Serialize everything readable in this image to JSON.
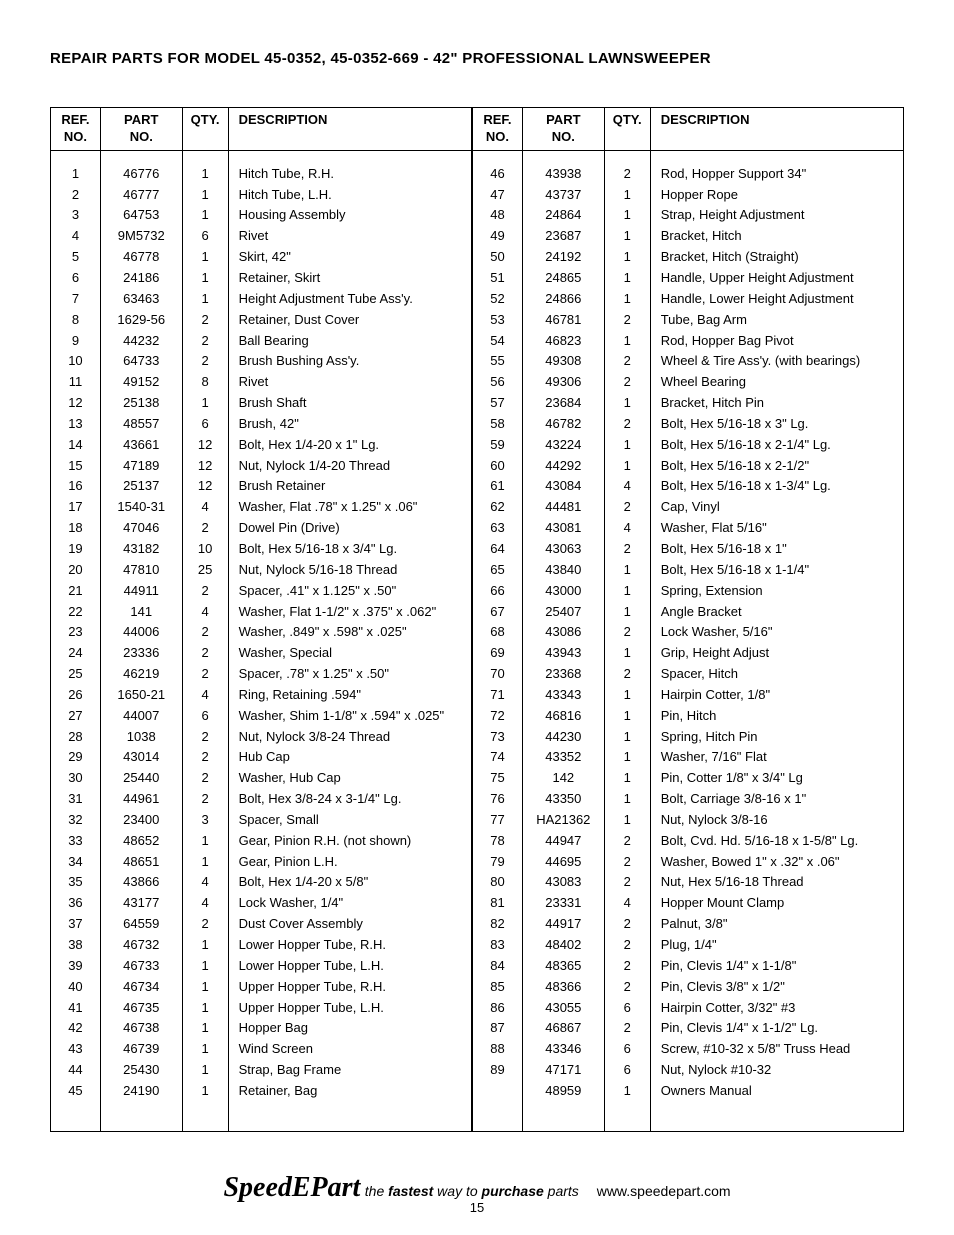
{
  "title": "REPAIR PARTS FOR MODEL 45-0352, 45-0352-669 - 42\"  PROFESSIONAL LAWNSWEEPER",
  "page_number": "15",
  "footer": {
    "brand": "SpeedEPart",
    "tagline_parts": [
      "the ",
      "fastest",
      " way to ",
      "purchase",
      " parts"
    ],
    "url": "www.speedepart.com"
  },
  "headers": {
    "ref": "REF.\nNO.",
    "part": "PART\nNO.",
    "qty": "QTY.",
    "desc": "DESCRIPTION"
  },
  "left": [
    {
      "ref": "1",
      "part": "46776",
      "qty": "1",
      "desc": "Hitch Tube, R.H."
    },
    {
      "ref": "2",
      "part": "46777",
      "qty": "1",
      "desc": "Hitch Tube, L.H."
    },
    {
      "ref": "3",
      "part": "64753",
      "qty": "1",
      "desc": "Housing Assembly"
    },
    {
      "ref": "4",
      "part": "9M5732",
      "qty": "6",
      "desc": "Rivet"
    },
    {
      "ref": "5",
      "part": "46778",
      "qty": "1",
      "desc": "Skirt, 42\""
    },
    {
      "ref": "6",
      "part": "24186",
      "qty": "1",
      "desc": "Retainer, Skirt"
    },
    {
      "ref": "7",
      "part": "63463",
      "qty": "1",
      "desc": "Height Adjustment Tube Ass'y."
    },
    {
      "ref": "8",
      "part": "1629-56",
      "qty": "2",
      "desc": "Retainer, Dust Cover"
    },
    {
      "ref": "9",
      "part": "44232",
      "qty": "2",
      "desc": "Ball Bearing"
    },
    {
      "ref": "10",
      "part": "64733",
      "qty": "2",
      "desc": "Brush Bushing Ass'y."
    },
    {
      "ref": "11",
      "part": "49152",
      "qty": "8",
      "desc": "Rivet"
    },
    {
      "ref": "12",
      "part": "25138",
      "qty": "1",
      "desc": "Brush Shaft"
    },
    {
      "ref": "13",
      "part": "48557",
      "qty": "6",
      "desc": "Brush, 42\""
    },
    {
      "ref": "14",
      "part": "43661",
      "qty": "12",
      "desc": "Bolt, Hex 1/4-20 x 1\" Lg."
    },
    {
      "ref": "15",
      "part": "47189",
      "qty": "12",
      "desc": "Nut, Nylock 1/4-20 Thread"
    },
    {
      "ref": "16",
      "part": "25137",
      "qty": "12",
      "desc": "Brush Retainer"
    },
    {
      "ref": "17",
      "part": "1540-31",
      "qty": "4",
      "desc": "Washer, Flat .78\" x 1.25\" x .06\""
    },
    {
      "ref": "18",
      "part": "47046",
      "qty": "2",
      "desc": "Dowel Pin (Drive)"
    },
    {
      "ref": "19",
      "part": "43182",
      "qty": "10",
      "desc": "Bolt, Hex 5/16-18 x 3/4\" Lg."
    },
    {
      "ref": "20",
      "part": "47810",
      "qty": "25",
      "desc": "Nut, Nylock 5/16-18 Thread"
    },
    {
      "ref": "21",
      "part": "44911",
      "qty": "2",
      "desc": "Spacer, .41\" x 1.125\" x .50\""
    },
    {
      "ref": "22",
      "part": "141",
      "qty": "4",
      "desc": "Washer, Flat 1-1/2\" x .375\" x .062\""
    },
    {
      "ref": "23",
      "part": "44006",
      "qty": "2",
      "desc": "Washer, .849\" x .598\" x .025\""
    },
    {
      "ref": "24",
      "part": "23336",
      "qty": "2",
      "desc": "Washer, Special"
    },
    {
      "ref": "25",
      "part": "46219",
      "qty": "2",
      "desc": "Spacer, .78\" x 1.25\" x .50\""
    },
    {
      "ref": "26",
      "part": "1650-21",
      "qty": "4",
      "desc": "Ring, Retaining .594\""
    },
    {
      "ref": "27",
      "part": "44007",
      "qty": "6",
      "desc": "Washer, Shim 1-1/8\" x .594\" x .025\""
    },
    {
      "ref": "28",
      "part": "1038",
      "qty": "2",
      "desc": "Nut, Nylock 3/8-24 Thread"
    },
    {
      "ref": "29",
      "part": "43014",
      "qty": "2",
      "desc": "Hub Cap"
    },
    {
      "ref": "30",
      "part": "25440",
      "qty": "2",
      "desc": "Washer, Hub Cap"
    },
    {
      "ref": "31",
      "part": "44961",
      "qty": "2",
      "desc": "Bolt, Hex 3/8-24 x 3-1/4\" Lg."
    },
    {
      "ref": "32",
      "part": "23400",
      "qty": "3",
      "desc": "Spacer, Small"
    },
    {
      "ref": "33",
      "part": "48652",
      "qty": "1",
      "desc": "Gear, Pinion R.H. (not shown)"
    },
    {
      "ref": "34",
      "part": "48651",
      "qty": "1",
      "desc": "Gear, Pinion L.H."
    },
    {
      "ref": "35",
      "part": "43866",
      "qty": "4",
      "desc": "Bolt, Hex 1/4-20 x 5/8\""
    },
    {
      "ref": "36",
      "part": "43177",
      "qty": "4",
      "desc": "Lock Washer, 1/4\""
    },
    {
      "ref": "37",
      "part": "64559",
      "qty": "2",
      "desc": "Dust Cover Assembly"
    },
    {
      "ref": "38",
      "part": "46732",
      "qty": "1",
      "desc": "Lower Hopper Tube, R.H."
    },
    {
      "ref": "39",
      "part": "46733",
      "qty": "1",
      "desc": "Lower Hopper Tube, L.H."
    },
    {
      "ref": "40",
      "part": "46734",
      "qty": "1",
      "desc": "Upper Hopper Tube, R.H."
    },
    {
      "ref": "41",
      "part": "46735",
      "qty": "1",
      "desc": "Upper Hopper Tube, L.H."
    },
    {
      "ref": "42",
      "part": "46738",
      "qty": "1",
      "desc": "Hopper Bag"
    },
    {
      "ref": "43",
      "part": "46739",
      "qty": "1",
      "desc": "Wind Screen"
    },
    {
      "ref": "44",
      "part": "25430",
      "qty": "1",
      "desc": "Strap, Bag Frame"
    },
    {
      "ref": "45",
      "part": "24190",
      "qty": "1",
      "desc": "Retainer, Bag"
    }
  ],
  "right": [
    {
      "ref": "46",
      "part": "43938",
      "qty": "2",
      "desc": "Rod, Hopper Support  34\""
    },
    {
      "ref": "47",
      "part": "43737",
      "qty": "1",
      "desc": "Hopper Rope"
    },
    {
      "ref": "48",
      "part": "24864",
      "qty": "1",
      "desc": "Strap, Height Adjustment"
    },
    {
      "ref": "49",
      "part": "23687",
      "qty": "1",
      "desc": "Bracket, Hitch"
    },
    {
      "ref": "50",
      "part": "24192",
      "qty": "1",
      "desc": "Bracket, Hitch (Straight)"
    },
    {
      "ref": "51",
      "part": "24865",
      "qty": "1",
      "desc": "Handle, Upper Height Adjustment"
    },
    {
      "ref": "52",
      "part": "24866",
      "qty": "1",
      "desc": "Handle, Lower Height Adjustment"
    },
    {
      "ref": "53",
      "part": "46781",
      "qty": "2",
      "desc": "Tube, Bag Arm"
    },
    {
      "ref": "54",
      "part": "46823",
      "qty": "1",
      "desc": "Rod, Hopper Bag Pivot"
    },
    {
      "ref": "55",
      "part": "49308",
      "qty": "2",
      "desc": "Wheel & Tire Ass'y. (with bearings)"
    },
    {
      "ref": "56",
      "part": "49306",
      "qty": "2",
      "desc": "Wheel Bearing"
    },
    {
      "ref": "57",
      "part": "23684",
      "qty": "1",
      "desc": "Bracket, Hitch Pin"
    },
    {
      "ref": "58",
      "part": "46782",
      "qty": "2",
      "desc": "Bolt, Hex 5/16-18 x 3\" Lg."
    },
    {
      "ref": "59",
      "part": "43224",
      "qty": "1",
      "desc": "Bolt, Hex 5/16-18 x 2-1/4\" Lg."
    },
    {
      "ref": "60",
      "part": "44292",
      "qty": "1",
      "desc": "Bolt, Hex 5/16-18 x 2-1/2\""
    },
    {
      "ref": "61",
      "part": "43084",
      "qty": "4",
      "desc": "Bolt, Hex 5/16-18 x 1-3/4\" Lg."
    },
    {
      "ref": "62",
      "part": "44481",
      "qty": "2",
      "desc": "Cap, Vinyl"
    },
    {
      "ref": "63",
      "part": "43081",
      "qty": "4",
      "desc": "Washer, Flat 5/16\""
    },
    {
      "ref": "64",
      "part": "43063",
      "qty": "2",
      "desc": "Bolt, Hex 5/16-18 x 1\""
    },
    {
      "ref": "65",
      "part": "43840",
      "qty": "1",
      "desc": "Bolt, Hex 5/16-18 x 1-1/4\""
    },
    {
      "ref": "66",
      "part": "43000",
      "qty": "1",
      "desc": "Spring, Extension"
    },
    {
      "ref": "67",
      "part": "25407",
      "qty": "1",
      "desc": "Angle Bracket"
    },
    {
      "ref": "68",
      "part": "43086",
      "qty": "2",
      "desc": "Lock Washer, 5/16\""
    },
    {
      "ref": "69",
      "part": "43943",
      "qty": "1",
      "desc": "Grip, Height Adjust"
    },
    {
      "ref": "70",
      "part": "23368",
      "qty": "2",
      "desc": "Spacer, Hitch"
    },
    {
      "ref": "71",
      "part": "43343",
      "qty": "1",
      "desc": "Hairpin Cotter, 1/8\""
    },
    {
      "ref": "72",
      "part": "46816",
      "qty": "1",
      "desc": "Pin, Hitch"
    },
    {
      "ref": "73",
      "part": "44230",
      "qty": "1",
      "desc": "Spring, Hitch Pin"
    },
    {
      "ref": "74",
      "part": "43352",
      "qty": "1",
      "desc": "Washer, 7/16\" Flat"
    },
    {
      "ref": "75",
      "part": "142",
      "qty": "1",
      "desc": "Pin, Cotter 1/8\" x 3/4\" Lg"
    },
    {
      "ref": "76",
      "part": "43350",
      "qty": "1",
      "desc": "Bolt, Carriage 3/8-16 x 1\""
    },
    {
      "ref": "77",
      "part": "HA21362",
      "qty": "1",
      "desc": "Nut, Nylock 3/8-16"
    },
    {
      "ref": "78",
      "part": "44947",
      "qty": "2",
      "desc": "Bolt, Cvd. Hd. 5/16-18 x 1-5/8\" Lg."
    },
    {
      "ref": "79",
      "part": "44695",
      "qty": "2",
      "desc": "Washer, Bowed 1\" x .32\" x .06\""
    },
    {
      "ref": "80",
      "part": "43083",
      "qty": "2",
      "desc": "Nut, Hex 5/16-18 Thread"
    },
    {
      "ref": "81",
      "part": "23331",
      "qty": "4",
      "desc": "Hopper Mount Clamp"
    },
    {
      "ref": "82",
      "part": "44917",
      "qty": "2",
      "desc": "Palnut, 3/8\""
    },
    {
      "ref": "83",
      "part": "48402",
      "qty": "2",
      "desc": "Plug, 1/4\""
    },
    {
      "ref": "84",
      "part": "48365",
      "qty": "2",
      "desc": "Pin, Clevis 1/4\" x 1-1/8\""
    },
    {
      "ref": "85",
      "part": "48366",
      "qty": "2",
      "desc": "Pin, Clevis 3/8\" x 1/2\""
    },
    {
      "ref": "86",
      "part": "43055",
      "qty": "6",
      "desc": "Hairpin Cotter, 3/32\"  #3"
    },
    {
      "ref": "87",
      "part": "46867",
      "qty": "2",
      "desc": "Pin, Clevis 1/4\" x 1-1/2\" Lg."
    },
    {
      "ref": "88",
      "part": "43346",
      "qty": "6",
      "desc": "Screw, #10-32 x 5/8\" Truss Head"
    },
    {
      "ref": "89",
      "part": "47171",
      "qty": "6",
      "desc": "Nut, Nylock #10-32"
    },
    {
      "ref": "",
      "part": "48959",
      "qty": "1",
      "desc": "Owners Manual"
    }
  ]
}
